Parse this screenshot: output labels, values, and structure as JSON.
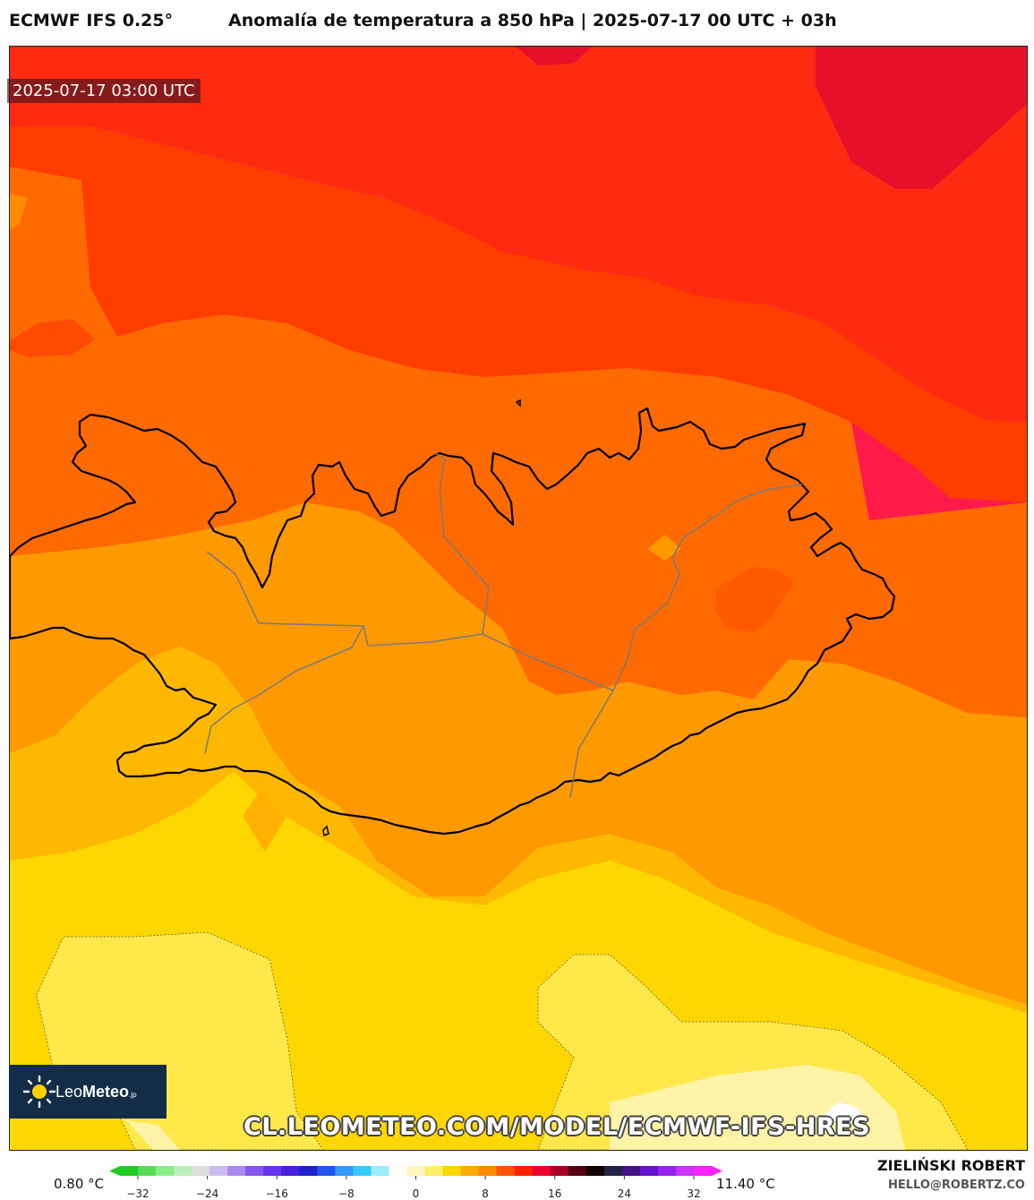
{
  "header": {
    "model": "ECMWF IFS 0.25°",
    "title": "Anomalía de temperatura a 850 hPa | 2025-07-17 00 UTC + 03h"
  },
  "map": {
    "valid_time": "2025-07-17 03:00 UTC",
    "region": "Iceland",
    "url": "CL.LEOMETEO.COM/MODEL/ECMWF-IFS-HRES"
  },
  "logo": {
    "name_light": "Leo",
    "name_bold": "Meteo",
    "suffix": ".jp"
  },
  "colorbar": {
    "min_label": "0.80 °C",
    "max_label": "11.40 °C",
    "ticks": [
      "−32",
      "−24",
      "−16",
      "−8",
      "0",
      "8",
      "16",
      "24",
      "32"
    ],
    "colors": [
      "#22cc22",
      "#55dd55",
      "#88ee88",
      "#bbeebb",
      "#dddddd",
      "#ccbbee",
      "#aa88ee",
      "#8855ee",
      "#6633ee",
      "#4422dd",
      "#2222cc",
      "#2255ee",
      "#3399ff",
      "#33ccff",
      "#99eeff",
      "#ffffff",
      "#fff6bb",
      "#ffee66",
      "#ffd700",
      "#ffaa00",
      "#ff8800",
      "#ff5500",
      "#ff2200",
      "#ee0033",
      "#aa0022",
      "#550011",
      "#110000",
      "#222244",
      "#441188",
      "#6611cc",
      "#9922ee",
      "#cc33ff",
      "#ff22ff"
    ]
  },
  "credit": {
    "name": "ZIELIŃSKI ROBERT",
    "email": "HELLO@ROBERTZ.CO"
  }
}
